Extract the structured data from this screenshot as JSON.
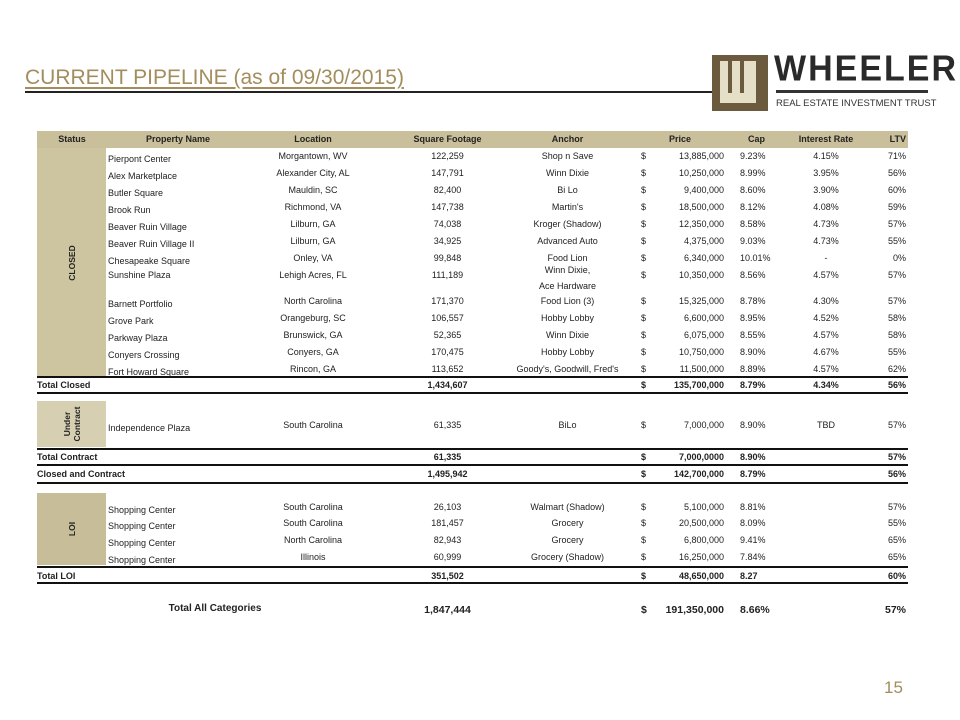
{
  "title": "CURRENT PIPELINE (as of 09/30/2015)",
  "logo": {
    "word": "WHEELER",
    "subtitle": "REAL ESTATE INVESTMENT TRUST"
  },
  "colors": {
    "title": "#a38d5c",
    "header_bg": "#c9c09b",
    "closed_band": "#cdc4a0",
    "contract_band": "#d6cfb2",
    "loi_band": "#c7be99"
  },
  "columns": {
    "status": "Status",
    "name": "Property Name",
    "location": "Location",
    "sqft": "Square  Footage",
    "anchor": "Anchor",
    "price": "Price",
    "cap": "Cap",
    "interest": "Interest Rate",
    "ltv": "LTV"
  },
  "sections": [
    {
      "status": "CLOSED",
      "rows": [
        {
          "name": "Pierpont Center",
          "location": "Morgantown, WV",
          "sqft": "122,259",
          "anchor": "Shop n Save",
          "dollar": "$",
          "price": "13,885,000",
          "cap": "9.23%",
          "interest": "4.15%",
          "ltv": "71%"
        },
        {
          "name": "Alex Marketplace",
          "location": "Alexander City, AL",
          "sqft": "147,791",
          "anchor": "Winn Dixie",
          "dollar": "$",
          "price": "10,250,000",
          "cap": "8.99%",
          "interest": "3.95%",
          "ltv": "56%"
        },
        {
          "name": "Butler Square",
          "location": "Mauldin, SC",
          "sqft": "82,400",
          "anchor": "Bi Lo",
          "dollar": "$",
          "price": "9,400,000",
          "cap": "8.60%",
          "interest": "3.90%",
          "ltv": "60%"
        },
        {
          "name": "Brook Run",
          "location": "Richmond, VA",
          "sqft": "147,738",
          "anchor": "Martin's",
          "dollar": "$",
          "price": "18,500,000",
          "cap": "8.12%",
          "interest": "4.08%",
          "ltv": "59%"
        },
        {
          "name": "Beaver Ruin Village",
          "location": "Lilburn, GA",
          "sqft": "74,038",
          "anchor": "Kroger (Shadow)",
          "dollar": "$",
          "price": "12,350,000",
          "cap": "8.58%",
          "interest": "4.73%",
          "ltv": "57%"
        },
        {
          "name": "Beaver Ruin Village II",
          "location": "Lilburn, GA",
          "sqft": "34,925",
          "anchor": "Advanced Auto",
          "dollar": "$",
          "price": "4,375,000",
          "cap": "9.03%",
          "interest": "4.73%",
          "ltv": "55%"
        },
        {
          "name": "Chesapeake Square",
          "location": "Onley, VA",
          "sqft": "99,848",
          "anchor": "Food Lion",
          "dollar": "$",
          "price": "6,340,000",
          "cap": "10.01%",
          "interest": "-",
          "ltv": "0%"
        },
        {
          "name": "Sunshine Plaza",
          "location": "Lehigh Acres, FL",
          "sqft": "111,189",
          "anchor": "Winn Dixie,\nAce Hardware",
          "dollar": "$",
          "price": "10,350,000",
          "cap": "8.56%",
          "interest": "4.57%",
          "ltv": "57%"
        },
        {
          "name": "Barnett Portfolio",
          "location": "North Carolina",
          "sqft": "171,370",
          "anchor": "Food Lion (3)",
          "dollar": "$",
          "price": "15,325,000",
          "cap": "8.78%",
          "interest": "4.30%",
          "ltv": "57%"
        },
        {
          "name": "Grove Park",
          "location": "Orangeburg, SC",
          "sqft": "106,557",
          "anchor": "Hobby Lobby",
          "dollar": "$",
          "price": "6,600,000",
          "cap": "8.95%",
          "interest": "4.52%",
          "ltv": "58%"
        },
        {
          "name": "Parkway Plaza",
          "location": "Brunswick, GA",
          "sqft": "52,365",
          "anchor": "Winn Dixie",
          "dollar": "$",
          "price": "6,075,000",
          "cap": "8.55%",
          "interest": "4.57%",
          "ltv": "58%"
        },
        {
          "name": "Conyers Crossing",
          "location": "Conyers, GA",
          "sqft": "170,475",
          "anchor": "Hobby Lobby",
          "dollar": "$",
          "price": "10,750,000",
          "cap": "8.90%",
          "interest": "4.67%",
          "ltv": "55%"
        },
        {
          "name": "Fort Howard Square",
          "location": "Rincon, GA",
          "sqft": "113,652",
          "anchor": "Goody's, Goodwill, Fred's",
          "dollar": "$",
          "price": "11,500,000",
          "cap": "8.89%",
          "interest": "4.57%",
          "ltv": "62%"
        }
      ]
    },
    {
      "status": "Under\nContract",
      "rows": [
        {
          "name": "Independence  Plaza",
          "location": "South Carolina",
          "sqft": "61,335",
          "anchor": "BiLo",
          "dollar": "$",
          "price": "7,000,000",
          "cap": "8.90%",
          "interest": "TBD",
          "ltv": "57%"
        }
      ]
    },
    {
      "status": "LOI",
      "rows": [
        {
          "name": "Shopping Center",
          "location": "South Carolina",
          "sqft": "26,103",
          "anchor": "Walmart (Shadow)",
          "dollar": "$",
          "price": "5,100,000",
          "cap": "8.81%",
          "interest": "",
          "ltv": "57%"
        },
        {
          "name": "Shopping Center",
          "location": "South Carolina",
          "sqft": "181,457",
          "anchor": "Grocery",
          "dollar": "$",
          "price": "20,500,000",
          "cap": "8.09%",
          "interest": "",
          "ltv": "55%"
        },
        {
          "name": "Shopping Center",
          "location": "North Carolina",
          "sqft": "82,943",
          "anchor": "Grocery",
          "dollar": "$",
          "price": "6,800,000",
          "cap": "9.41%",
          "interest": "",
          "ltv": "65%"
        },
        {
          "name": "Shopping Center",
          "location": "Illinois",
          "sqft": "60,999",
          "anchor": "Grocery (Shadow)",
          "dollar": "$",
          "price": "16,250,000",
          "cap": "7.84%",
          "interest": "",
          "ltv": "65%"
        }
      ]
    }
  ],
  "totals": [
    {
      "label": "Total Closed",
      "sqft": "1,434,607",
      "dollar": "$",
      "price": "135,700,000",
      "cap": "8.79%",
      "interest": "4.34%",
      "ltv": "56%"
    },
    {
      "label": "Total Contract",
      "sqft": "61,335",
      "dollar": "$",
      "price": "7,000,0000",
      "cap": "8.90%",
      "interest": "",
      "ltv": "57%"
    },
    {
      "label": "Closed and Contract",
      "sqft": "1,495,942",
      "dollar": "$",
      "price": "142,700,000",
      "cap": "8.79%",
      "interest": "",
      "ltv": "56%"
    },
    {
      "label": "Total LOI",
      "sqft": "351,502",
      "dollar": "$",
      "price": "48,650,000",
      "cap": "8.27",
      "interest": "",
      "ltv": "60%"
    }
  ],
  "grand_total": {
    "label": "Total All Categories",
    "sqft": "1,847,444",
    "dollar": "$",
    "price": "191,350,000",
    "cap": "8.66%",
    "ltv": "57%"
  },
  "page_number": "15"
}
